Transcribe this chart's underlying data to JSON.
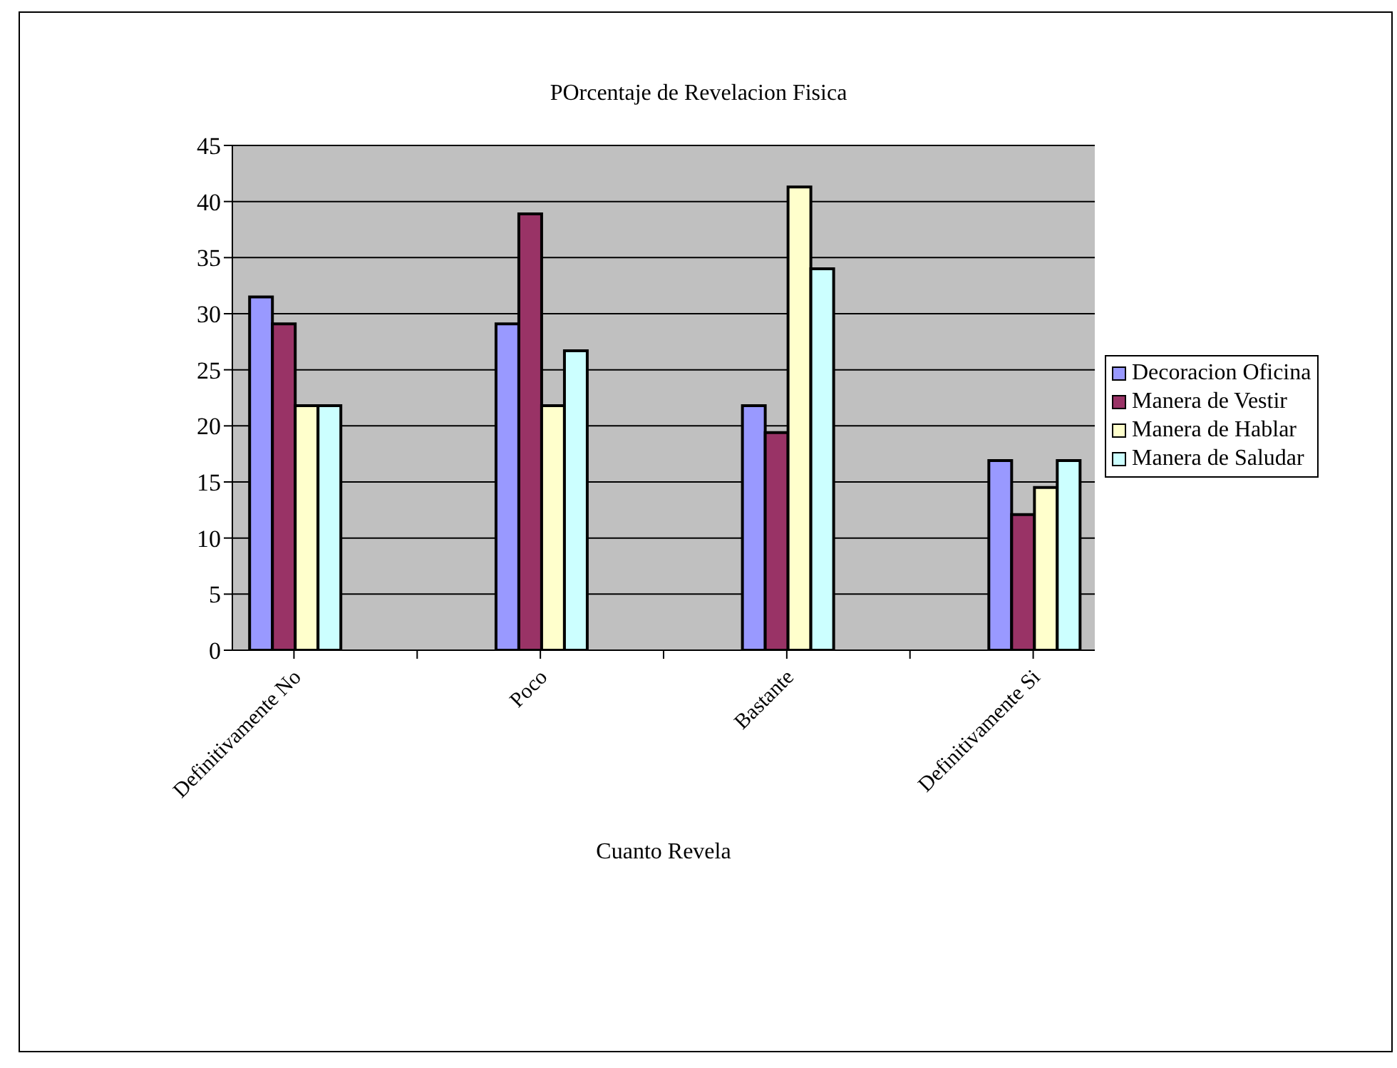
{
  "chart_data": {
    "type": "bar",
    "title": "POrcentaje de Revelacion Fisica",
    "xlabel": "Cuanto Revela",
    "categories": [
      "Definitivamente No",
      null,
      "Poco",
      null,
      "Bastante",
      null,
      "Definitivamente Si"
    ],
    "series": [
      {
        "name": "Decoracion Oficina",
        "color": "#9999ff",
        "values": [
          31.5,
          null,
          29.1,
          null,
          21.8,
          null,
          16.9
        ]
      },
      {
        "name": "Manera de Vestir",
        "color": "#993366",
        "values": [
          29.1,
          null,
          38.9,
          null,
          19.4,
          null,
          12.1
        ]
      },
      {
        "name": "Manera de Hablar",
        "color": "#ffffcc",
        "values": [
          21.8,
          null,
          21.8,
          null,
          41.3,
          null,
          14.5
        ]
      },
      {
        "name": "Manera de Saludar",
        "color": "#ccffff",
        "values": [
          21.8,
          null,
          26.7,
          null,
          34.0,
          null,
          16.9
        ]
      }
    ],
    "ylim": [
      0,
      45
    ],
    "yticks": [
      0,
      5,
      10,
      15,
      20,
      25,
      30,
      35,
      40,
      45
    ],
    "grid": "y",
    "legend": "right"
  }
}
